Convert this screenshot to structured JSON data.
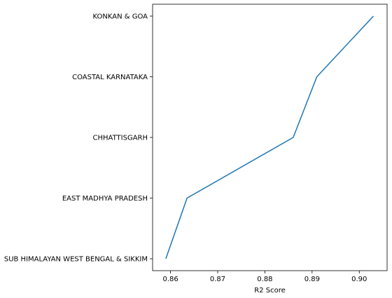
{
  "chart_data": {
    "type": "line",
    "title": "",
    "xlabel": "R2 Score",
    "ylabel": "",
    "xlim": [
      0.8562,
      0.9059
    ],
    "x_ticks": [
      0.86,
      0.87,
      0.88,
      0.89,
      0.9
    ],
    "x_tick_labels": [
      "0.86",
      "0.87",
      "0.88",
      "0.89",
      "0.90"
    ],
    "categories": [
      "SUB HIMALAYAN WEST BENGAL & SIKKIM",
      "EAST MADHYA PRADESH",
      "CHHATTISGARH",
      "COASTAL KARNATAKA",
      "KONKAN & GOA"
    ],
    "series": [
      {
        "values": [
          0.859,
          0.8635,
          0.886,
          0.891,
          0.903
        ]
      }
    ],
    "colors": {
      "line": "#1f77b4",
      "axis": "#000000"
    },
    "grid": false,
    "legend": "none"
  }
}
